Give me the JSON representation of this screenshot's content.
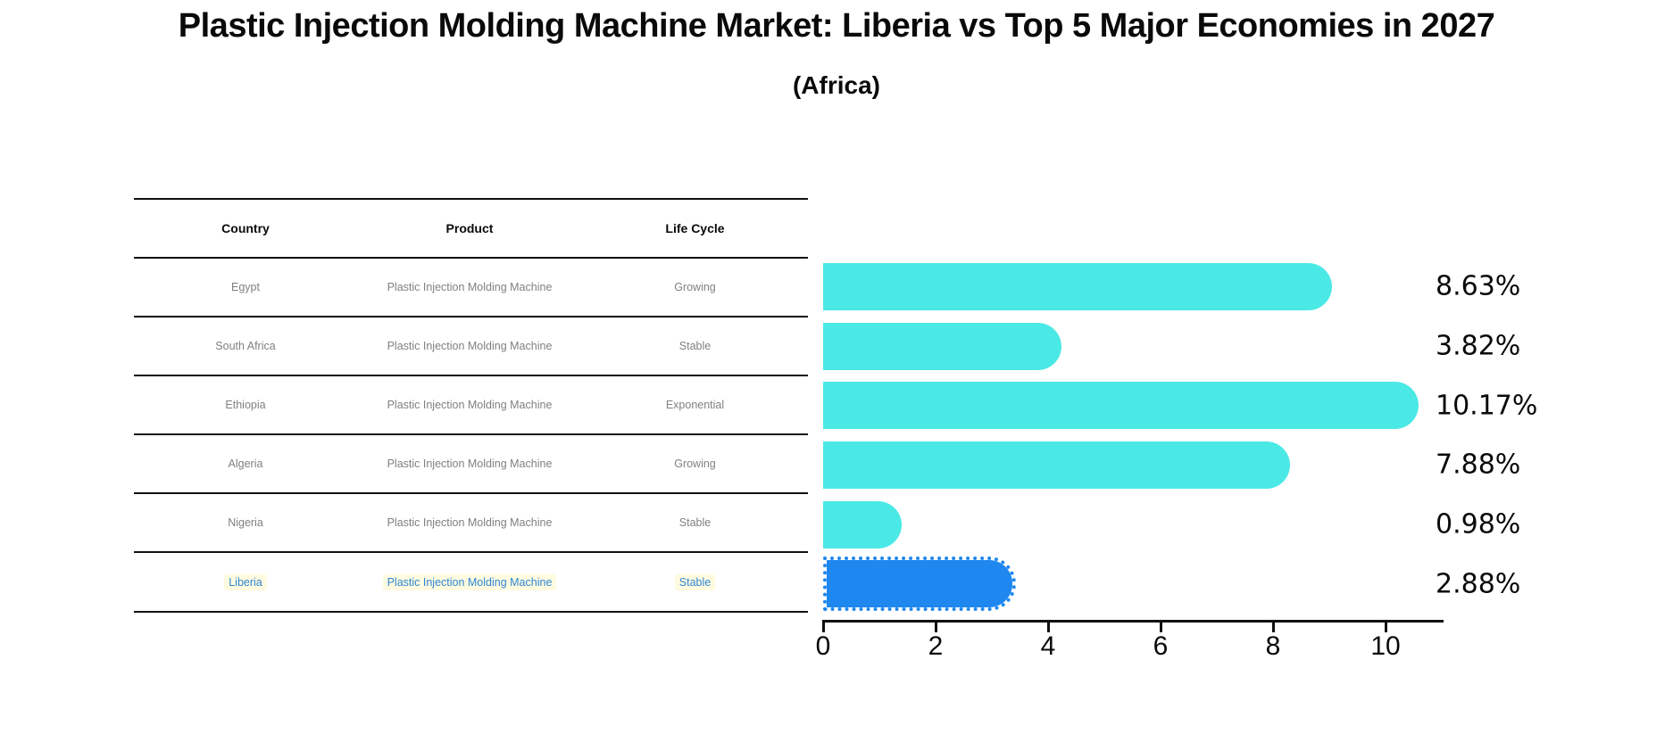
{
  "title": "Plastic Injection Molding Machine Market: Liberia vs Top 5 Major Economies in 2027",
  "subtitle": "(Africa)",
  "table": {
    "headers": [
      "Country",
      "Product",
      "Life Cycle"
    ],
    "rows": [
      {
        "country": "Egypt",
        "product": "Plastic Injection Molding Machine",
        "life_cycle": "Growing",
        "highlighted": false
      },
      {
        "country": "South Africa",
        "product": "Plastic Injection Molding Machine",
        "life_cycle": "Stable",
        "highlighted": false
      },
      {
        "country": "Ethiopia",
        "product": "Plastic Injection Molding Machine",
        "life_cycle": "Exponential",
        "highlighted": false
      },
      {
        "country": "Algeria",
        "product": "Plastic Injection Molding Machine",
        "life_cycle": "Growing",
        "highlighted": false
      },
      {
        "country": "Nigeria",
        "product": "Plastic Injection Molding Machine",
        "life_cycle": "Stable",
        "highlighted": false
      },
      {
        "country": "Liberia",
        "product": "Plastic Injection Molding Machine",
        "life_cycle": "Stable",
        "highlighted": true
      }
    ]
  },
  "chart_data": {
    "type": "bar",
    "orientation": "horizontal",
    "title": "Plastic Injection Molding Machine Market: Liberia vs Top 5 Major Economies in 2027 (Africa)",
    "categories": [
      "Egypt",
      "South Africa",
      "Ethiopia",
      "Algeria",
      "Nigeria",
      "Liberia"
    ],
    "values": [
      8.63,
      3.82,
      10.17,
      7.88,
      0.98,
      2.88
    ],
    "value_labels": [
      "8.63%",
      "3.82%",
      "10.17%",
      "7.88%",
      "0.98%",
      "2.88%"
    ],
    "x_ticks": [
      0,
      2,
      4,
      6,
      8,
      10
    ],
    "xlim": [
      0,
      10.8
    ],
    "grid": false,
    "legend": false,
    "highlight_category": "Liberia",
    "colors": {
      "bar_default": "#4be9e6",
      "bar_highlight": "#1e87f0",
      "highlight_text": "#2e86d5",
      "row_text": "#808080",
      "axis": "#111111"
    }
  }
}
